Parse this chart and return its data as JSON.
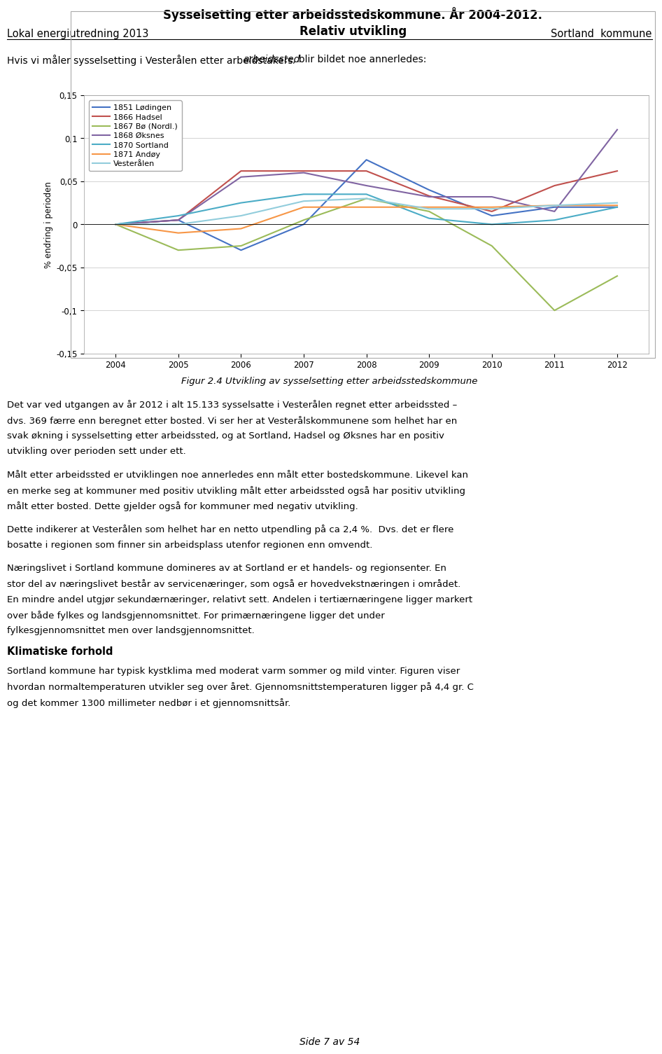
{
  "title_line1": "Sysselsetting etter arbeidsstedskommune. År 2004-2012.",
  "title_line2": "Relativ utvikling",
  "ylabel": "% endring i perioden",
  "years": [
    2004,
    2005,
    2006,
    2007,
    2008,
    2009,
    2010,
    2011,
    2012
  ],
  "series": [
    {
      "label": "1851 Lødingen",
      "color": "#4472C4",
      "data": [
        0.0,
        0.005,
        -0.03,
        0.0,
        0.075,
        0.04,
        0.01,
        0.02,
        0.02
      ]
    },
    {
      "label": "1866 Hadsel",
      "color": "#C0504D",
      "data": [
        0.0,
        0.005,
        0.062,
        0.062,
        0.062,
        0.033,
        0.015,
        0.045,
        0.062
      ]
    },
    {
      "label": "1867 Bø (Nordl.)",
      "color": "#9BBB59",
      "data": [
        0.0,
        -0.03,
        -0.025,
        0.005,
        0.03,
        0.015,
        -0.025,
        -0.1,
        -0.06
      ]
    },
    {
      "label": "1868 Øksnes",
      "color": "#8064A2",
      "data": [
        0.0,
        0.005,
        0.055,
        0.06,
        0.045,
        0.032,
        0.032,
        0.015,
        0.11
      ]
    },
    {
      "label": "1870 Sortland",
      "color": "#4BACC6",
      "data": [
        0.0,
        0.01,
        0.025,
        0.035,
        0.035,
        0.007,
        0.0,
        0.005,
        0.02
      ]
    },
    {
      "label": "1871 Andøy",
      "color": "#F79646",
      "data": [
        0.0,
        -0.01,
        -0.005,
        0.02,
        0.02,
        0.02,
        0.02,
        0.022,
        0.022
      ]
    },
    {
      "label": "Vesterålen",
      "color": "#92CDDC",
      "data": [
        0.0,
        0.0,
        0.01,
        0.027,
        0.03,
        0.018,
        0.018,
        0.022,
        0.025
      ]
    }
  ],
  "ylim": [
    -0.15,
    0.15
  ],
  "yticks": [
    -0.15,
    -0.1,
    -0.05,
    0.0,
    0.05,
    0.1,
    0.15
  ],
  "ytick_labels": [
    "-0,15",
    "-0,1",
    "-0,05",
    "0",
    "0,05",
    "0,1",
    "0,15"
  ],
  "header_left": "Lokal energiutredning 2013",
  "header_right": "Sortland  kommune",
  "figure_caption": "Figur 2.4 Utvikling av sysselsetting etter arbeidsstedskommune",
  "intro_normal1": "Hvis vi måler sysselsetting i Vesterålen etter arbeidstakers ",
  "intro_italic": "arbeidssted",
  "intro_normal2": ", blir bildet noe annerledes:",
  "body_lines": [
    [
      "Det var ved utgangen av år 2012 i alt 15.133 sysselsatte i Vesterålen regnet etter arbeidssted –"
    ],
    [
      "dvs. 369 færre enn beregnet etter bosted. Vi ser her at Vesterålskommunene som helhet har en"
    ],
    [
      "svak økning i sysselsetting etter arbeidssted, og at Sortland, Hadsel og Øksnes har en positiv"
    ],
    [
      "utvikling over perioden sett under ett."
    ],
    [
      ""
    ],
    [
      "Målt etter arbeidssted er utviklingen noe annerledes enn målt etter bostedskommune. Likevel kan"
    ],
    [
      "en merke seg at kommuner med positiv utvikling målt etter arbeidssted også har positiv utvikling"
    ],
    [
      "målt etter bosted. Dette gjelder også for kommuner med negativ utvikling."
    ],
    [
      ""
    ],
    [
      "Dette indikerer at Vesterålen som helhet har en netto utpendling på ca 2,4 %.  Dvs. det er flere"
    ],
    [
      "bosatte i regionen som finner sin arbeidsplass utenfor regionen enn omvendt."
    ],
    [
      ""
    ],
    [
      "Næringslivet i Sortland kommune domineres av at Sortland er et handels- og regionsenter. En"
    ],
    [
      "stor del av næringslivet består av servicenæringer, som også er hovedvekstnæringen i området."
    ],
    [
      "En mindre andel utgjør sekundærnæringer, relativt sett. Andelen i tertiærnæringene ligger markert"
    ],
    [
      "over både fylkes og landsgjennomsnittet. For primærnæringene ligger det under"
    ],
    [
      "fylkesgjennomsnittet men over landsgjennomsnittet."
    ]
  ],
  "climate_header": "Klimatiske forhold",
  "climate_lines": [
    "Sortland kommune har typisk kystklima med moderat varm sommer og mild vinter. Figuren viser",
    "hvordan normaltemperaturen utvikler seg over året. Gjennomsnittstemperaturen ligger på 4,4 gr. C",
    "og det kommer 1300 millimeter nedbør i et gjennomsnittsår."
  ],
  "page_footer": "Side 7 av 54"
}
